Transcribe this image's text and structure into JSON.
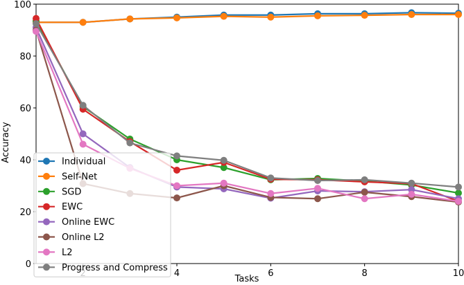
{
  "chart_data": {
    "type": "line",
    "title": "",
    "xlabel": "Tasks",
    "ylabel": "Accuracy",
    "xlim": [
      1,
      10
    ],
    "ylim": [
      0,
      100
    ],
    "xticks": [
      2,
      4,
      6,
      8,
      10
    ],
    "yticks": [
      0,
      20,
      40,
      60,
      80,
      100
    ],
    "grid": false,
    "legend_position": "lower-left",
    "x": [
      1,
      2,
      3,
      4,
      5,
      6,
      7,
      8,
      9,
      10
    ],
    "series": [
      {
        "name": "Individual",
        "color": "#1f77b4",
        "values": [
          93,
          93,
          94.3,
          95,
          95.8,
          95.8,
          96.3,
          96.3,
          96.7,
          96.5
        ]
      },
      {
        "name": "Self-Net",
        "color": "#ff7f0e",
        "values": [
          93,
          93,
          94.3,
          94.7,
          95.3,
          95,
          95.5,
          95.7,
          96,
          96
        ]
      },
      {
        "name": "SGD",
        "color": "#2ca02c",
        "values": [
          93.5,
          60.5,
          48,
          40,
          37,
          32.3,
          32.8,
          31.8,
          30.3,
          27.2
        ]
      },
      {
        "name": "EWC",
        "color": "#d62728",
        "values": [
          94.5,
          59.5,
          47,
          36,
          39,
          32.5,
          32.3,
          31.5,
          30.8,
          24
        ]
      },
      {
        "name": "Online EWC",
        "color": "#9467bd",
        "values": [
          91,
          50,
          37,
          29.5,
          28.8,
          25.2,
          28,
          27.7,
          28.5,
          25
        ]
      },
      {
        "name": "Online L2",
        "color": "#8c564b",
        "values": [
          90,
          30.8,
          27,
          25.3,
          30,
          25.5,
          25,
          27.5,
          25.8,
          23.7
        ]
      },
      {
        "name": "L2",
        "color": "#e377c2",
        "values": [
          89.5,
          46,
          36.7,
          30,
          31,
          27,
          29,
          25,
          26.7,
          24
        ]
      },
      {
        "name": "Progress and Compress",
        "color": "#7f7f7f",
        "values": [
          92.5,
          61,
          46.5,
          41.5,
          39.8,
          33,
          32,
          32.3,
          31,
          29.5
        ]
      }
    ]
  }
}
